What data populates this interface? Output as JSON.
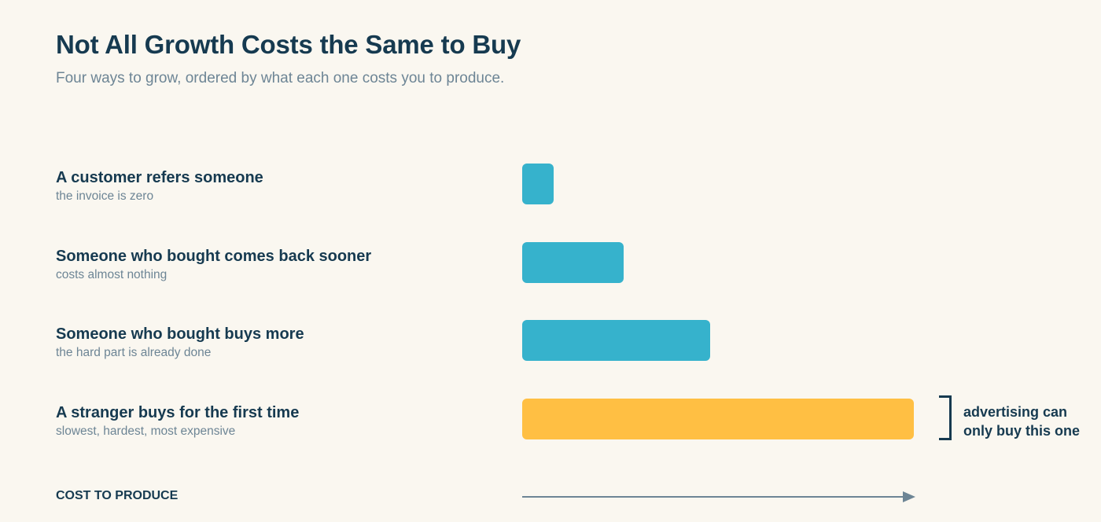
{
  "header": {
    "title": "Not All Growth Costs the Same to Buy",
    "subtitle": "Four ways to grow, ordered by what each one costs you to produce."
  },
  "colors": {
    "background": "#FAF7F0",
    "text_dark": "#163A50",
    "text_muted": "#6D8595",
    "bar_teal": "#36B2CC",
    "bar_highlight": "#FFBF43",
    "axis": "#6D8595"
  },
  "chart_data": {
    "type": "bar",
    "orientation": "horizontal",
    "title": "Not All Growth Costs the Same to Buy",
    "subtitle": "Four ways to grow, ordered by what each one costs you to produce.",
    "xlabel": "COST TO PRODUCE",
    "ylabel": "",
    "xlim": [
      0,
      100
    ],
    "grid": false,
    "axis_numbers_shown": false,
    "categories": [
      "A customer refers someone",
      "Someone who bought comes back sooner",
      "Someone who bought buys more",
      "A stranger buys for the first time"
    ],
    "notes": [
      "the invoice is zero",
      "costs almost nothing",
      "the hard part is already done",
      "slowest, hardest, most expensive"
    ],
    "values": [
      8,
      26,
      48,
      100
    ],
    "highlight_index": 3,
    "annotation": {
      "text": "advertising can only buy this one",
      "target_index": 3
    }
  }
}
